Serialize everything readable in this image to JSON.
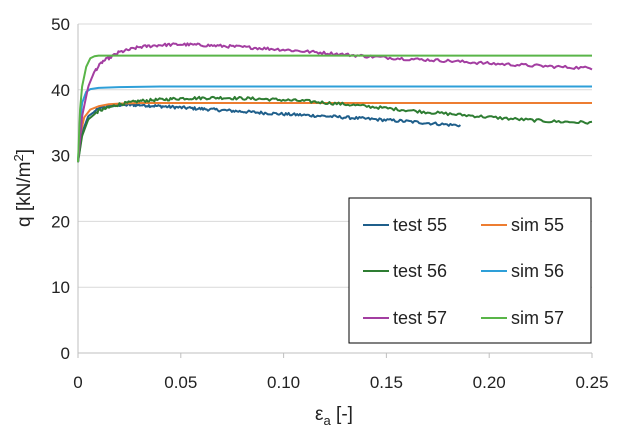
{
  "chart_data": {
    "type": "line",
    "xlabel_main": "ε",
    "xlabel_sub": "a",
    "xlabel_rest": " [-]",
    "ylabel_main": "q [kN/m",
    "ylabel_sup": "2",
    "ylabel_end": "]",
    "xlim": [
      0,
      0.25
    ],
    "ylim": [
      0,
      50
    ],
    "xticks": [
      0,
      0.05,
      0.1,
      0.15,
      0.2,
      0.25
    ],
    "xtick_labels": [
      "0",
      "0.05",
      "0.10",
      "0.15",
      "0.20",
      "0.25"
    ],
    "yticks": [
      0,
      10,
      20,
      30,
      40,
      50
    ],
    "ytick_labels": [
      "0",
      "10",
      "20",
      "30",
      "40",
      "50"
    ],
    "grid": "horizontal",
    "legend_position": "bottom-right",
    "series": [
      {
        "name": "test 55",
        "color": "#1f5f8b",
        "noisy": true,
        "x": [
          0,
          0.002,
          0.005,
          0.01,
          0.015,
          0.02,
          0.03,
          0.04,
          0.06,
          0.08,
          0.1,
          0.12,
          0.14,
          0.16,
          0.18,
          0.186
        ],
        "y": [
          29.0,
          33.5,
          36.0,
          37.1,
          37.5,
          37.7,
          37.7,
          37.5,
          37.1,
          36.7,
          36.3,
          36.0,
          35.6,
          35.2,
          34.7,
          34.6
        ]
      },
      {
        "name": "sim 55",
        "color": "#ed7d31",
        "noisy": false,
        "x": [
          0,
          0.001,
          0.003,
          0.006,
          0.01,
          0.015,
          0.02,
          0.03,
          0.05,
          0.25
        ],
        "y": [
          29.0,
          33.0,
          35.8,
          37.0,
          37.5,
          37.8,
          37.9,
          38.0,
          38.0,
          38.0
        ]
      },
      {
        "name": "test 56",
        "color": "#2e7d32",
        "noisy": true,
        "x": [
          0,
          0.002,
          0.005,
          0.01,
          0.02,
          0.03,
          0.05,
          0.07,
          0.09,
          0.11,
          0.13,
          0.15,
          0.17,
          0.19,
          0.21,
          0.23,
          0.25
        ],
        "y": [
          29.0,
          33.0,
          35.5,
          36.8,
          37.8,
          38.3,
          38.7,
          38.8,
          38.6,
          38.3,
          37.8,
          37.2,
          36.6,
          36.1,
          35.6,
          35.2,
          35.0
        ]
      },
      {
        "name": "sim 56",
        "color": "#2e9fd8",
        "noisy": false,
        "x": [
          0,
          0.001,
          0.002,
          0.004,
          0.006,
          0.01,
          0.02,
          0.04,
          0.25
        ],
        "y": [
          29.0,
          35.0,
          38.0,
          39.7,
          40.1,
          40.3,
          40.4,
          40.5,
          40.5
        ]
      },
      {
        "name": "test 57",
        "color": "#a33ea1",
        "noisy": true,
        "x": [
          0,
          0.002,
          0.005,
          0.008,
          0.012,
          0.02,
          0.03,
          0.04,
          0.05,
          0.06,
          0.08,
          0.1,
          0.12,
          0.14,
          0.16,
          0.18,
          0.2,
          0.22,
          0.24,
          0.25
        ],
        "y": [
          29.0,
          36.0,
          40.5,
          42.8,
          44.3,
          45.7,
          46.5,
          46.8,
          46.9,
          46.8,
          46.5,
          46.1,
          45.6,
          45.1,
          44.7,
          44.4,
          44.0,
          43.7,
          43.4,
          43.3
        ]
      },
      {
        "name": "sim 57",
        "color": "#59b548",
        "noisy": false,
        "x": [
          0,
          0.001,
          0.002,
          0.004,
          0.006,
          0.008,
          0.01,
          0.02,
          0.25
        ],
        "y": [
          29.0,
          37.0,
          40.5,
          43.5,
          44.8,
          45.1,
          45.2,
          45.2,
          45.2
        ]
      }
    ]
  }
}
